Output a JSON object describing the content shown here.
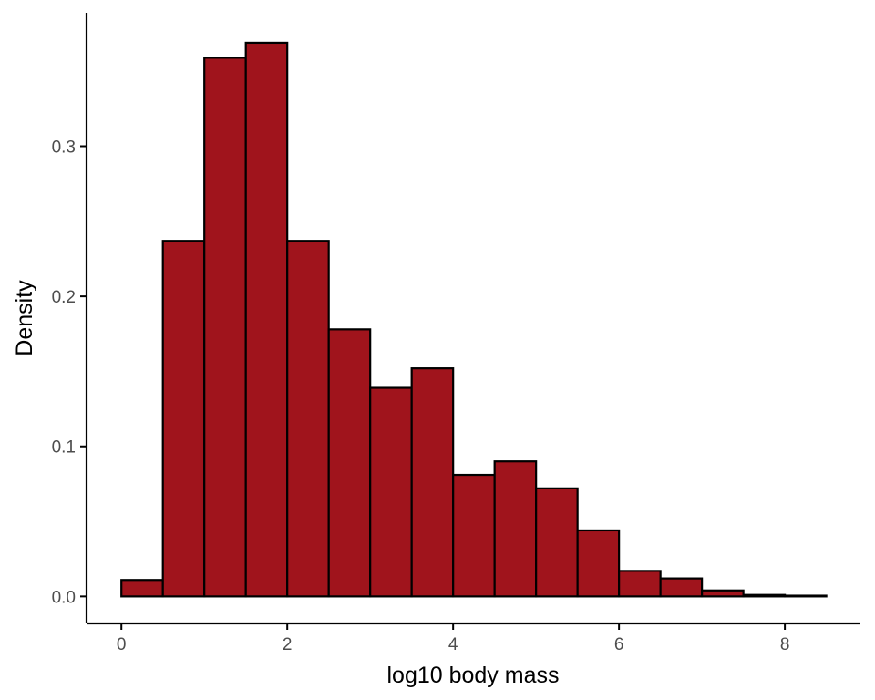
{
  "chart_data": {
    "type": "bar",
    "title": "",
    "xlabel": "log10 body mass",
    "ylabel": "Density",
    "bin_width": 0.5,
    "bins": [
      {
        "x0": 0.0,
        "x1": 0.5,
        "value": 0.011
      },
      {
        "x0": 0.5,
        "x1": 1.0,
        "value": 0.237
      },
      {
        "x0": 1.0,
        "x1": 1.5,
        "value": 0.359
      },
      {
        "x0": 1.5,
        "x1": 2.0,
        "value": 0.369
      },
      {
        "x0": 2.0,
        "x1": 2.5,
        "value": 0.237
      },
      {
        "x0": 2.5,
        "x1": 3.0,
        "value": 0.178
      },
      {
        "x0": 3.0,
        "x1": 3.5,
        "value": 0.139
      },
      {
        "x0": 3.5,
        "x1": 4.0,
        "value": 0.152
      },
      {
        "x0": 4.0,
        "x1": 4.5,
        "value": 0.081
      },
      {
        "x0": 4.5,
        "x1": 5.0,
        "value": 0.09
      },
      {
        "x0": 5.0,
        "x1": 5.5,
        "value": 0.072
      },
      {
        "x0": 5.5,
        "x1": 6.0,
        "value": 0.044
      },
      {
        "x0": 6.0,
        "x1": 6.5,
        "value": 0.017
      },
      {
        "x0": 6.5,
        "x1": 7.0,
        "value": 0.012
      },
      {
        "x0": 7.0,
        "x1": 7.5,
        "value": 0.004
      },
      {
        "x0": 7.5,
        "x1": 8.0,
        "value": 0.001
      },
      {
        "x0": 8.0,
        "x1": 8.5,
        "value": 0.0005
      }
    ],
    "xlim": [
      -0.42,
      8.9
    ],
    "ylim": [
      -0.018,
      0.389
    ],
    "x_ticks": [
      0,
      2,
      4,
      6,
      8
    ],
    "x_tick_labels": [
      "0",
      "2",
      "4",
      "6",
      "8"
    ],
    "y_ticks": [
      0.0,
      0.1,
      0.2,
      0.3
    ],
    "y_tick_labels": [
      "0.0",
      "0.1",
      "0.2",
      "0.3"
    ],
    "grid": false,
    "legend": "none",
    "colors": {
      "bar_fill": "#a0141c",
      "bar_stroke": "#000000",
      "axis": "#000000",
      "tick_text": "#4d4d4d"
    }
  }
}
